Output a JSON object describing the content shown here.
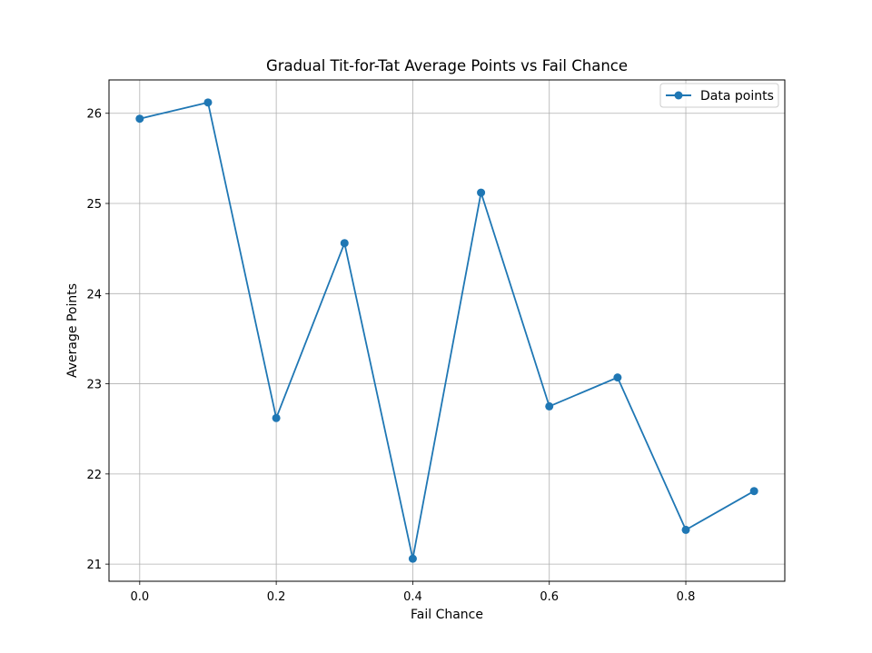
{
  "chart_data": {
    "type": "line",
    "title": "Gradual Tit-for-Tat Average Points vs Fail Chance",
    "xlabel": "Fail Chance",
    "ylabel": "Average Points",
    "xlim": [
      -0.045,
      0.945
    ],
    "ylim": [
      20.81,
      26.37
    ],
    "xticks": [
      0.0,
      0.2,
      0.4,
      0.6,
      0.8
    ],
    "xtick_labels": [
      "0.0",
      "0.2",
      "0.4",
      "0.6",
      "0.8"
    ],
    "yticks": [
      21,
      22,
      23,
      24,
      25,
      26
    ],
    "ytick_labels": [
      "21",
      "22",
      "23",
      "24",
      "25",
      "26"
    ],
    "grid": true,
    "legend_position": "upper-right",
    "series": [
      {
        "name": "Data points",
        "color": "#1f77b4",
        "marker": "circle",
        "x": [
          0.0,
          0.1,
          0.2,
          0.3,
          0.4,
          0.5,
          0.6,
          0.7,
          0.8,
          0.9
        ],
        "y": [
          25.94,
          26.12,
          22.62,
          24.56,
          21.06,
          25.12,
          22.75,
          23.07,
          21.38,
          21.81
        ]
      }
    ]
  }
}
